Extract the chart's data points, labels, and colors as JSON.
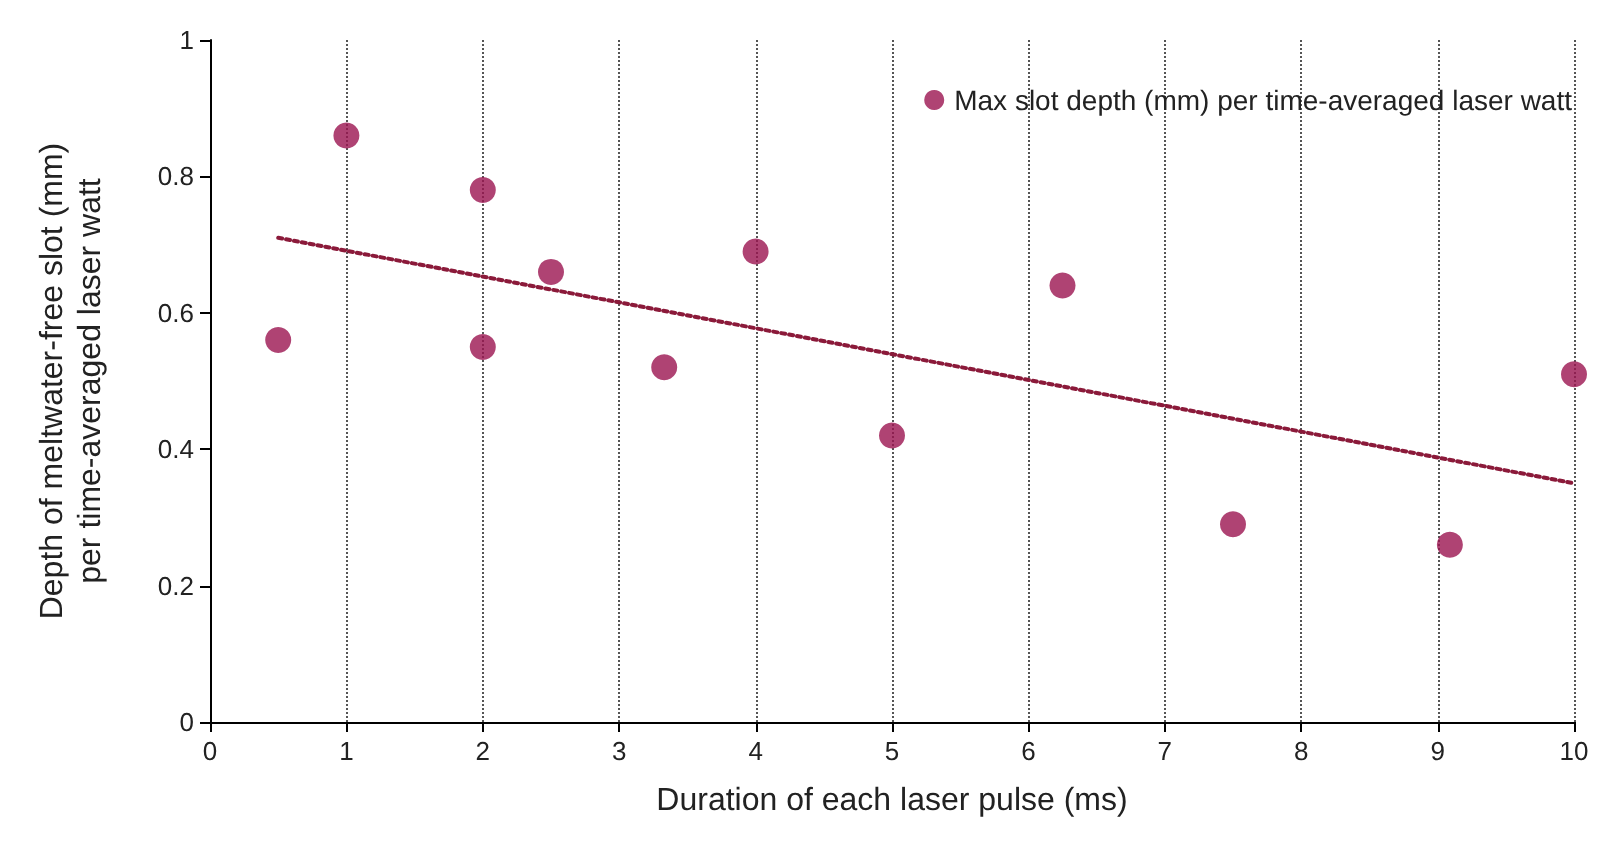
{
  "chart_data": {
    "type": "scatter",
    "xlabel": "Duration of each laser pulse (ms)",
    "ylabel": "Depth of meltwater-free slot (mm)\nper time-averaged laser watt",
    "xlim": [
      0,
      10
    ],
    "xticks": [
      0,
      1,
      2,
      3,
      4,
      5,
      6,
      7,
      8,
      9,
      10
    ],
    "ylim": [
      0,
      1
    ],
    "yticks": [
      0,
      0.2,
      0.4,
      0.6,
      0.8,
      1
    ],
    "grid": "x",
    "legend": "top right",
    "marker": "circle",
    "series": [
      {
        "name": "Max slot depth (mm) per time-averaged laser watt",
        "color": "#9b1450",
        "x": [
          0.5,
          1,
          2,
          2,
          2.5,
          3.33,
          4,
          5,
          6.25,
          7.5,
          9.09,
          10
        ],
        "values": [
          0.56,
          0.86,
          0.78,
          0.55,
          0.66,
          0.52,
          0.69,
          0.42,
          0.64,
          0.29,
          0.26,
          0.51
        ]
      },
      {
        "type": "line",
        "color": "#8b1a3a",
        "line_style": "dotted",
        "marker": "none",
        "x": [
          0.5,
          10
        ],
        "values": [
          0.71,
          0.35
        ]
      }
    ]
  }
}
